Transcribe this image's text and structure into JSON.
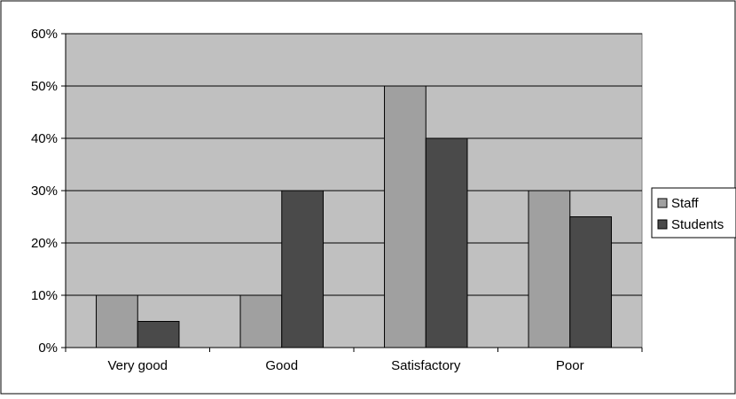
{
  "chart_data": {
    "type": "bar",
    "categories": [
      "Very good",
      "Good",
      "Satisfactory",
      "Poor"
    ],
    "series": [
      {
        "name": "Staff",
        "values": [
          10,
          10,
          50,
          30
        ],
        "color": "#a0a0a0"
      },
      {
        "name": "Students",
        "values": [
          5,
          30,
          40,
          25
        ],
        "color": "#4a4a4a"
      }
    ],
    "ylim": [
      0,
      60
    ],
    "yticks": [
      0,
      10,
      20,
      30,
      40,
      50,
      60
    ],
    "ytick_suffix": "%",
    "plot_background": "#c0c0c0",
    "grid": true,
    "legend_position": "right",
    "title": "",
    "xlabel": "",
    "ylabel": ""
  }
}
